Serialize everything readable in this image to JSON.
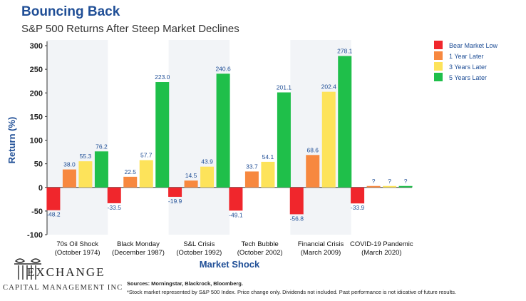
{
  "header": {
    "title": "Bouncing Back",
    "subtitle": "S&P 500 Returns After Steep Market Declines"
  },
  "chart_data": {
    "type": "bar",
    "xlabel": "Market Shock",
    "ylabel": "Return (%)",
    "ylim": [
      -100,
      300
    ],
    "yticks": [
      300,
      250,
      200,
      150,
      100,
      50,
      0,
      -50,
      -100
    ],
    "ytick_labels": [
      "300",
      "250",
      "200",
      "150",
      "100",
      "50",
      "0",
      "-50",
      "-100"
    ],
    "grid": false,
    "legend_position": "top-right",
    "categories": [
      [
        "70s Oil Shock",
        "(October 1974)"
      ],
      [
        "Black Monday",
        "(December 1987)"
      ],
      [
        "S&L Crisis",
        "(October 1992)"
      ],
      [
        "Tech Bubble",
        "(October 2002)"
      ],
      [
        "Financial Crisis",
        "(March 2009)"
      ],
      [
        "COVID-19 Pandemic",
        "(March 2020)"
      ]
    ],
    "series": [
      {
        "name": "Bear Market Low",
        "color": "#f0262c",
        "values": [
          -48.2,
          -33.5,
          -19.9,
          -49.1,
          -56.8,
          -33.9
        ],
        "labels": [
          "-48.2",
          "-33.5",
          "-19.9",
          "-49.1",
          "-56.8",
          "-33.9"
        ]
      },
      {
        "name": "1 Year Later",
        "color": "#f7883f",
        "values": [
          38.0,
          22.5,
          14.5,
          33.7,
          68.6,
          3
        ],
        "labels": [
          "38.0",
          "22.5",
          "14.5",
          "33.7",
          "68.6",
          "?"
        ]
      },
      {
        "name": "3 Years Later",
        "color": "#fde35a",
        "values": [
          55.3,
          57.7,
          43.9,
          54.1,
          202.4,
          3
        ],
        "labels": [
          "55.3",
          "57.7",
          "43.9",
          "54.1",
          "202.4",
          "?"
        ]
      },
      {
        "name": "5 Years Later",
        "color": "#1fbf4a",
        "values": [
          76.2,
          223.0,
          240.6,
          201.1,
          278.1,
          3
        ],
        "labels": [
          "76.2",
          "223.0",
          "240.6",
          "201.1",
          "278.1",
          "?"
        ]
      }
    ],
    "label_color": "#1f4e96",
    "band_color": "#f2f4f7"
  },
  "footer": {
    "logo_name": "EXCHANGE",
    "logo_sub": "CAPITAL MANAGEMENT INC",
    "sources": "Sources: Morningstar, Blackrock, Bloomberg.",
    "disclaimer": "*Stock market represented by S&P 500 Index. Price change only. Dividends not included. Past performance is not idicative of future results."
  }
}
